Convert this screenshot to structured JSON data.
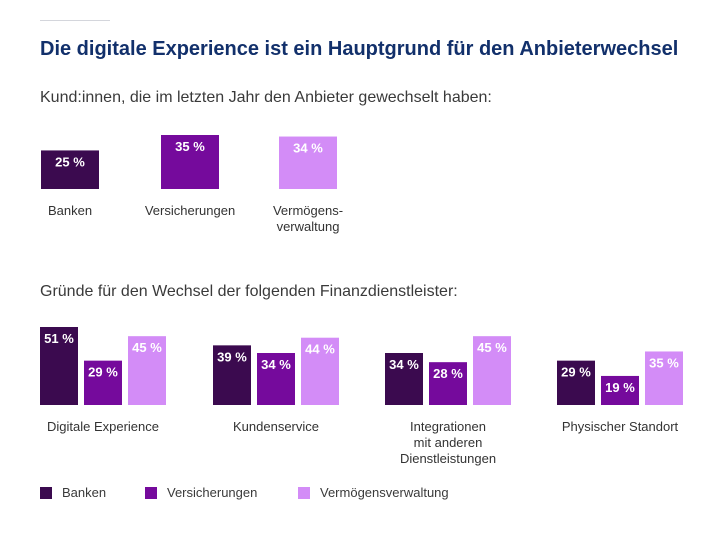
{
  "title": "Die digitale Experience ist ein Hauptgrund für den Anbieterwechsel",
  "colors": {
    "banken": "#3b0a4f",
    "versicherungen": "#750a9c",
    "vermoegen": "#d38cf7",
    "title": "#12306b"
  },
  "chart_data": [
    {
      "type": "bar",
      "title": "Kund:innen, die im letzten Jahr den Anbieter gewechselt haben:",
      "categories": [
        [
          "Banken"
        ],
        [
          "Versicherungen"
        ],
        [
          "Vermögens-",
          "verwaltung"
        ]
      ],
      "values": [
        25,
        35,
        34
      ],
      "value_labels": [
        "25 %",
        "35 %",
        "34 %"
      ]
    },
    {
      "type": "bar",
      "title": "Gründe für den Wechsel der folgenden Finanzdienstleister:",
      "categories": [
        [
          "Digitale Experience"
        ],
        [
          "Kundenservice"
        ],
        [
          "Integrationen",
          "mit anderen",
          "Dienstleistungen"
        ],
        [
          "Physischer Standort"
        ]
      ],
      "series": [
        {
          "name": "Banken",
          "values": [
            51,
            39,
            34,
            29
          ],
          "value_labels": [
            "51 %",
            "39 %",
            "34 %",
            "29 %"
          ]
        },
        {
          "name": "Versicherungen",
          "values": [
            29,
            34,
            28,
            19
          ],
          "value_labels": [
            "29 %",
            "34 %",
            "28 %",
            "19 %"
          ]
        },
        {
          "name": "Vermögensverwaltung",
          "values": [
            45,
            44,
            45,
            35
          ],
          "value_labels": [
            "45 %",
            "44 %",
            "45 %",
            "35 %"
          ]
        }
      ]
    }
  ],
  "legend": [
    {
      "label": "Banken",
      "color": "#3b0a4f"
    },
    {
      "label": "Versicherungen",
      "color": "#750a9c"
    },
    {
      "label": "Vermögensverwaltung",
      "color": "#d38cf7"
    }
  ]
}
